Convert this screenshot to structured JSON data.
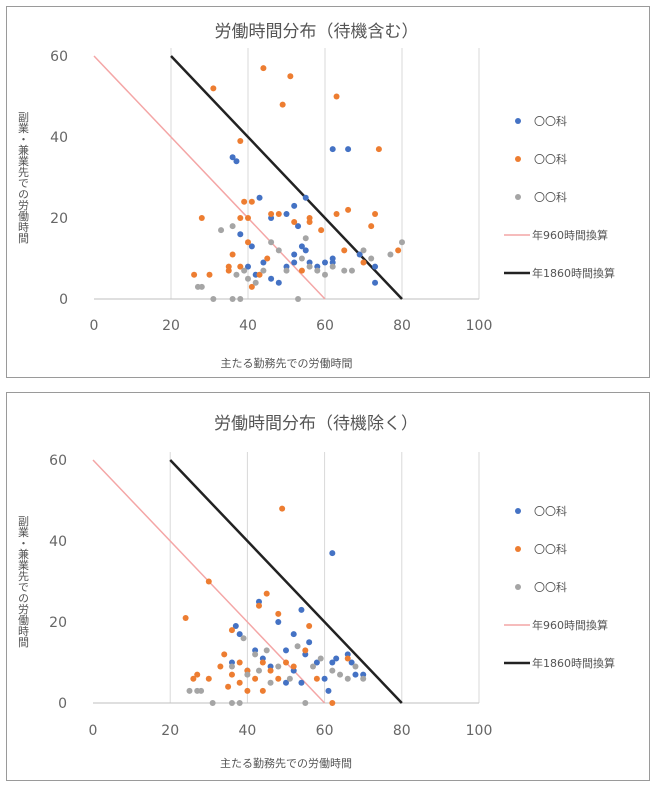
{
  "chart_data": [
    {
      "type": "scatter",
      "title": "労働時間分布（待機含む）",
      "xlabel": "主たる勤務先での労働時間",
      "ylabel": "副業・兼業先での労働時間",
      "xlim": [
        0,
        100
      ],
      "ylim": [
        0,
        60
      ],
      "x_ticks": [
        "0",
        "20",
        "40",
        "60",
        "80",
        "100"
      ],
      "y_ticks": [
        "0",
        "20",
        "40",
        "60"
      ],
      "grid": "vertical",
      "legend_position": "right",
      "colors": {
        "blue": "#4472c4",
        "orange": "#ed7d31",
        "gray": "#a5a5a5",
        "line960": "#f4a6a6",
        "line1860": "#222222"
      },
      "series": [
        {
          "name": "〇〇科",
          "kind": "points",
          "color": "#4472c4",
          "points": [
            [
              36,
              35
            ],
            [
              37,
              34
            ],
            [
              43,
              25
            ],
            [
              55,
              25
            ],
            [
              52,
              23
            ],
            [
              50,
              21
            ],
            [
              46,
              20
            ],
            [
              62,
              37
            ],
            [
              66,
              37
            ],
            [
              53,
              18
            ],
            [
              54,
              13
            ],
            [
              52,
              11
            ],
            [
              55,
              12
            ],
            [
              40,
              8
            ],
            [
              42,
              6
            ],
            [
              41,
              13
            ],
            [
              52,
              9
            ],
            [
              58,
              8
            ],
            [
              60,
              9
            ],
            [
              62,
              9
            ],
            [
              69,
              11
            ],
            [
              73,
              4
            ],
            [
              73,
              8
            ],
            [
              38,
              16
            ],
            [
              44,
              9
            ],
            [
              50,
              8
            ],
            [
              56,
              9
            ],
            [
              62,
              10
            ],
            [
              48,
              4
            ],
            [
              46,
              5
            ]
          ]
        },
        {
          "name": "〇〇科",
          "kind": "points",
          "color": "#ed7d31",
          "points": [
            [
              31,
              52
            ],
            [
              44,
              57
            ],
            [
              49,
              48
            ],
            [
              51,
              55
            ],
            [
              63,
              50
            ],
            [
              74,
              37
            ],
            [
              38,
              39
            ],
            [
              39,
              24
            ],
            [
              41,
              24
            ],
            [
              38,
              20
            ],
            [
              40,
              20
            ],
            [
              46,
              21
            ],
            [
              48,
              21
            ],
            [
              52,
              19
            ],
            [
              56,
              20
            ],
            [
              63,
              21
            ],
            [
              66,
              22
            ],
            [
              73,
              21
            ],
            [
              72,
              18
            ],
            [
              79,
              12
            ],
            [
              40,
              14
            ],
            [
              36,
              11
            ],
            [
              35,
              7
            ],
            [
              38,
              8
            ],
            [
              41,
              3
            ],
            [
              43,
              6
            ],
            [
              28,
              20
            ],
            [
              30,
              6
            ],
            [
              26,
              6
            ],
            [
              35,
              8
            ],
            [
              45,
              10
            ],
            [
              54,
              7
            ],
            [
              59,
              17
            ],
            [
              65,
              12
            ],
            [
              70,
              9
            ],
            [
              56,
              19
            ]
          ]
        },
        {
          "name": "〇〇科",
          "kind": "points",
          "color": "#a5a5a5",
          "points": [
            [
              27,
              3
            ],
            [
              28,
              3
            ],
            [
              31,
              0
            ],
            [
              36,
              0
            ],
            [
              38,
              0
            ],
            [
              37,
              6
            ],
            [
              39,
              7
            ],
            [
              40,
              5
            ],
            [
              36,
              18
            ],
            [
              33,
              17
            ],
            [
              42,
              4
            ],
            [
              50,
              7
            ],
            [
              54,
              10
            ],
            [
              56,
              8
            ],
            [
              58,
              7
            ],
            [
              62,
              8
            ],
            [
              65,
              7
            ],
            [
              67,
              7
            ],
            [
              70,
              12
            ],
            [
              72,
              10
            ],
            [
              77,
              11
            ],
            [
              80,
              14
            ],
            [
              53,
              0
            ],
            [
              48,
              12
            ],
            [
              46,
              14
            ],
            [
              44,
              7
            ],
            [
              55,
              15
            ],
            [
              60,
              6
            ]
          ]
        },
        {
          "name": "年960時間換算",
          "kind": "line",
          "color": "#f4a6a6",
          "points": [
            [
              0,
              60
            ],
            [
              60,
              0
            ]
          ]
        },
        {
          "name": "年1860時間換算",
          "kind": "line",
          "color": "#222222",
          "points": [
            [
              20,
              60
            ],
            [
              80,
              0
            ]
          ]
        }
      ]
    },
    {
      "type": "scatter",
      "title": "労働時間分布（待機除く）",
      "xlabel": "主たる勤務先での労働時間",
      "ylabel": "副業・兼業先での労働時間",
      "xlim": [
        0,
        100
      ],
      "ylim": [
        0,
        60
      ],
      "x_ticks": [
        "0",
        "20",
        "40",
        "60",
        "80",
        "100"
      ],
      "y_ticks": [
        "0",
        "20",
        "40",
        "60"
      ],
      "grid": "vertical",
      "legend_position": "right",
      "colors": {
        "blue": "#4472c4",
        "orange": "#ed7d31",
        "gray": "#a5a5a5",
        "line960": "#f4a6a6",
        "line1860": "#222222"
      },
      "series": [
        {
          "name": "〇〇科",
          "kind": "points",
          "color": "#4472c4",
          "points": [
            [
              62,
              37
            ],
            [
              54,
              23
            ],
            [
              43,
              25
            ],
            [
              37,
              19
            ],
            [
              38,
              17
            ],
            [
              48,
              20
            ],
            [
              52,
              17
            ],
            [
              55,
              12
            ],
            [
              56,
              15
            ],
            [
              50,
              13
            ],
            [
              42,
              13
            ],
            [
              44,
              11
            ],
            [
              52,
              8
            ],
            [
              54,
              5
            ],
            [
              60,
              6
            ],
            [
              62,
              10
            ],
            [
              63,
              11
            ],
            [
              66,
              12
            ],
            [
              67,
              10
            ],
            [
              68,
              7
            ],
            [
              70,
              7
            ],
            [
              40,
              8
            ],
            [
              46,
              9
            ],
            [
              58,
              10
            ],
            [
              61,
              3
            ],
            [
              36,
              10
            ],
            [
              50,
              5
            ]
          ]
        },
        {
          "name": "〇〇科",
          "kind": "points",
          "color": "#ed7d31",
          "points": [
            [
              49,
              48
            ],
            [
              30,
              30
            ],
            [
              24,
              21
            ],
            [
              36,
              18
            ],
            [
              43,
              24
            ],
            [
              45,
              27
            ],
            [
              48,
              22
            ],
            [
              56,
              19
            ],
            [
              66,
              11
            ],
            [
              62,
              0
            ],
            [
              38,
              10
            ],
            [
              40,
              8
            ],
            [
              36,
              7
            ],
            [
              33,
              9
            ],
            [
              30,
              6
            ],
            [
              26,
              6
            ],
            [
              27,
              7
            ],
            [
              35,
              4
            ],
            [
              38,
              5
            ],
            [
              42,
              6
            ],
            [
              44,
              10
            ],
            [
              46,
              8
            ],
            [
              52,
              9
            ],
            [
              55,
              13
            ],
            [
              58,
              6
            ],
            [
              34,
              12
            ],
            [
              40,
              3
            ],
            [
              44,
              3
            ],
            [
              48,
              6
            ],
            [
              50,
              10
            ]
          ]
        },
        {
          "name": "〇〇科",
          "kind": "points",
          "color": "#a5a5a5",
          "points": [
            [
              25,
              3
            ],
            [
              27,
              3
            ],
            [
              28,
              3
            ],
            [
              31,
              0
            ],
            [
              36,
              0
            ],
            [
              38,
              0
            ],
            [
              39,
              16
            ],
            [
              42,
              12
            ],
            [
              40,
              7
            ],
            [
              43,
              8
            ],
            [
              46,
              5
            ],
            [
              48,
              9
            ],
            [
              51,
              6
            ],
            [
              53,
              14
            ],
            [
              57,
              9
            ],
            [
              59,
              11
            ],
            [
              62,
              8
            ],
            [
              64,
              7
            ],
            [
              66,
              6
            ],
            [
              68,
              9
            ],
            [
              70,
              6
            ],
            [
              55,
              0
            ],
            [
              36,
              9
            ],
            [
              45,
              13
            ]
          ]
        },
        {
          "name": "年960時間換算",
          "kind": "line",
          "color": "#f4a6a6",
          "points": [
            [
              0,
              60
            ],
            [
              60,
              0
            ]
          ]
        },
        {
          "name": "年1860時間換算",
          "kind": "line",
          "color": "#222222",
          "points": [
            [
              20,
              60
            ],
            [
              80,
              0
            ]
          ]
        }
      ]
    }
  ]
}
